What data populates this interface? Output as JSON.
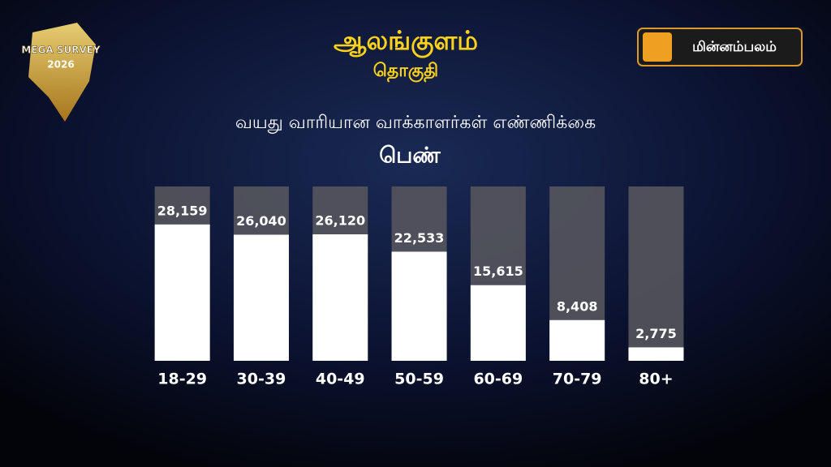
{
  "header": {
    "title": "ஆலங்குளம்",
    "subtitle": "தொகுதி",
    "logo": "மின்னம்பலம்",
    "badge_top": "MEGA SURVEY",
    "badge_year": "2026"
  },
  "chart_data": {
    "type": "bar",
    "title": "வயது வாரியான வாக்காளர்கள் எண்ணிக்கை",
    "subtitle": "பெண்",
    "categories": [
      "18-29",
      "30-39",
      "40-49",
      "50-59",
      "60-69",
      "70-79",
      "80+"
    ],
    "values": [
      28159,
      26040,
      26120,
      22533,
      15615,
      8408,
      2775
    ],
    "value_labels": [
      "28,159",
      "26,040",
      "26,120",
      "22,533",
      "15,615",
      "8,408",
      "2,775"
    ],
    "color": "#ffffff",
    "track_color": "#55555d",
    "ylim": [
      0,
      36000
    ]
  }
}
